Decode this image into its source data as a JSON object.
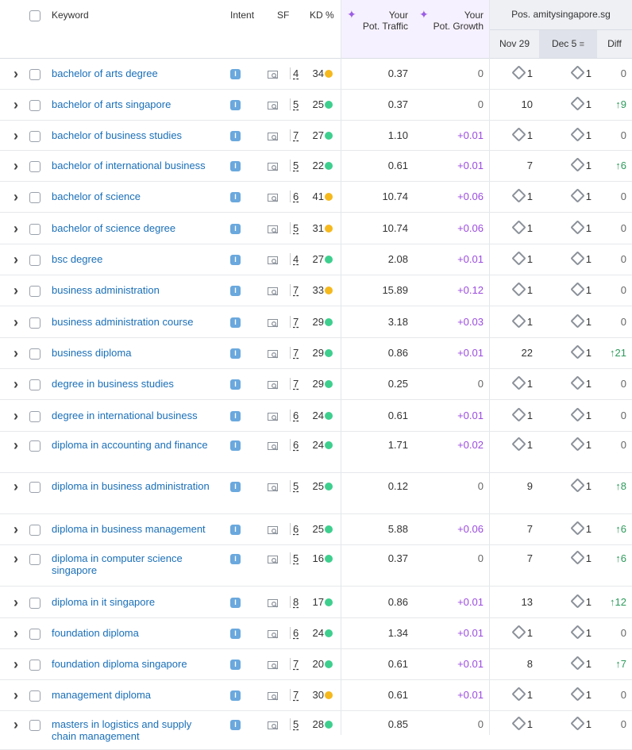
{
  "header": {
    "keyword": "Keyword",
    "intent": "Intent",
    "sf": "SF",
    "kd": "KD %",
    "traffic_l1": "Your",
    "traffic_l2": "Pot. Traffic",
    "growth_l1": "Your",
    "growth_l2": "Pot. Growth",
    "pos_title": "Pos. amitysingapore.sg",
    "date1": "Nov 29",
    "date2": "Dec 5",
    "sort_icon": "≡",
    "diff": "Diff"
  },
  "intent_letter": "I",
  "colors": {
    "kd_green": "#3ecf8e",
    "kd_yellow": "#f5b91e",
    "link": "#1a6fb8",
    "growth": "#9b4be0",
    "up": "#2e9a5c"
  },
  "rows": [
    {
      "kw": "bachelor of arts degree",
      "sf": "4",
      "kd": "34",
      "kdc": "y",
      "traffic": "0.37",
      "growth": "0",
      "nov": "1",
      "novIcon": true,
      "dec": "1",
      "diff": "0"
    },
    {
      "kw": "bachelor of arts singapore",
      "sf": "5",
      "kd": "25",
      "kdc": "g",
      "traffic": "0.37",
      "growth": "0",
      "nov": "10",
      "novIcon": false,
      "dec": "1",
      "diff": "↑9"
    },
    {
      "kw": "bachelor of business studies",
      "sf": "7",
      "kd": "27",
      "kdc": "g",
      "traffic": "1.10",
      "growth": "+0.01",
      "nov": "1",
      "novIcon": true,
      "dec": "1",
      "diff": "0"
    },
    {
      "kw": "bachelor of international business",
      "sf": "5",
      "kd": "22",
      "kdc": "g",
      "traffic": "0.61",
      "growth": "+0.01",
      "nov": "7",
      "novIcon": false,
      "dec": "1",
      "diff": "↑6"
    },
    {
      "kw": "bachelor of science",
      "sf": "6",
      "kd": "41",
      "kdc": "y",
      "traffic": "10.74",
      "growth": "+0.06",
      "nov": "1",
      "novIcon": true,
      "dec": "1",
      "diff": "0"
    },
    {
      "kw": "bachelor of science degree",
      "sf": "5",
      "kd": "31",
      "kdc": "y",
      "traffic": "10.74",
      "growth": "+0.06",
      "nov": "1",
      "novIcon": true,
      "dec": "1",
      "diff": "0"
    },
    {
      "kw": "bsc degree",
      "sf": "4",
      "kd": "27",
      "kdc": "g",
      "traffic": "2.08",
      "growth": "+0.01",
      "nov": "1",
      "novIcon": true,
      "dec": "1",
      "diff": "0"
    },
    {
      "kw": "business administration",
      "sf": "7",
      "kd": "33",
      "kdc": "y",
      "traffic": "15.89",
      "growth": "+0.12",
      "nov": "1",
      "novIcon": true,
      "dec": "1",
      "diff": "0"
    },
    {
      "kw": "business administration course",
      "sf": "7",
      "kd": "29",
      "kdc": "g",
      "traffic": "3.18",
      "growth": "+0.03",
      "nov": "1",
      "novIcon": true,
      "dec": "1",
      "diff": "0"
    },
    {
      "kw": "business diploma",
      "sf": "7",
      "kd": "29",
      "kdc": "g",
      "traffic": "0.86",
      "growth": "+0.01",
      "nov": "22",
      "novIcon": false,
      "dec": "1",
      "diff": "↑21"
    },
    {
      "kw": "degree in business studies",
      "sf": "7",
      "kd": "29",
      "kdc": "g",
      "traffic": "0.25",
      "growth": "0",
      "nov": "1",
      "novIcon": true,
      "dec": "1",
      "diff": "0"
    },
    {
      "kw": "degree in international business",
      "sf": "6",
      "kd": "24",
      "kdc": "g",
      "traffic": "0.61",
      "growth": "+0.01",
      "nov": "1",
      "novIcon": true,
      "dec": "1",
      "diff": "0"
    },
    {
      "kw": "diploma in accounting and finance",
      "sf": "6",
      "kd": "24",
      "kdc": "g",
      "traffic": "1.71",
      "growth": "+0.02",
      "nov": "1",
      "novIcon": true,
      "dec": "1",
      "diff": "0"
    },
    {
      "kw": "diploma in business administration",
      "sf": "5",
      "kd": "25",
      "kdc": "g",
      "traffic": "0.12",
      "growth": "0",
      "nov": "9",
      "novIcon": false,
      "dec": "1",
      "diff": "↑8"
    },
    {
      "kw": "diploma in business management",
      "sf": "6",
      "kd": "25",
      "kdc": "g",
      "traffic": "5.88",
      "growth": "+0.06",
      "nov": "7",
      "novIcon": false,
      "dec": "1",
      "diff": "↑6"
    },
    {
      "kw": "diploma in computer science singapore",
      "sf": "5",
      "kd": "16",
      "kdc": "g",
      "traffic": "0.37",
      "growth": "0",
      "nov": "7",
      "novIcon": false,
      "dec": "1",
      "diff": "↑6"
    },
    {
      "kw": "diploma in it singapore",
      "sf": "8",
      "kd": "17",
      "kdc": "g",
      "traffic": "0.86",
      "growth": "+0.01",
      "nov": "13",
      "novIcon": false,
      "dec": "1",
      "diff": "↑12"
    },
    {
      "kw": "foundation diploma",
      "sf": "6",
      "kd": "24",
      "kdc": "g",
      "traffic": "1.34",
      "growth": "+0.01",
      "nov": "1",
      "novIcon": true,
      "dec": "1",
      "diff": "0"
    },
    {
      "kw": "foundation diploma singapore",
      "sf": "7",
      "kd": "20",
      "kdc": "g",
      "traffic": "0.61",
      "growth": "+0.01",
      "nov": "8",
      "novIcon": false,
      "dec": "1",
      "diff": "↑7"
    },
    {
      "kw": "management diploma",
      "sf": "7",
      "kd": "30",
      "kdc": "y",
      "traffic": "0.61",
      "growth": "+0.01",
      "nov": "1",
      "novIcon": true,
      "dec": "1",
      "diff": "0"
    },
    {
      "kw": "masters in logistics and supply chain management",
      "sf": "5",
      "kd": "28",
      "kdc": "g",
      "traffic": "0.85",
      "growth": "0",
      "nov": "1",
      "novIcon": true,
      "dec": "1",
      "diff": "0"
    }
  ]
}
